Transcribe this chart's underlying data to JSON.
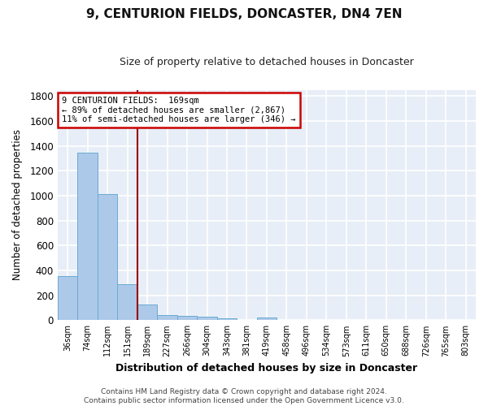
{
  "title": "9, CENTURION FIELDS, DONCASTER, DN4 7EN",
  "subtitle": "Size of property relative to detached houses in Doncaster",
  "xlabel": "Distribution of detached houses by size in Doncaster",
  "ylabel": "Number of detached properties",
  "footer_line1": "Contains HM Land Registry data © Crown copyright and database right 2024.",
  "footer_line2": "Contains public sector information licensed under the Open Government Licence v3.0.",
  "bin_labels": [
    "36sqm",
    "74sqm",
    "112sqm",
    "151sqm",
    "189sqm",
    "227sqm",
    "266sqm",
    "304sqm",
    "343sqm",
    "381sqm",
    "419sqm",
    "458sqm",
    "496sqm",
    "534sqm",
    "573sqm",
    "611sqm",
    "650sqm",
    "688sqm",
    "726sqm",
    "765sqm",
    "803sqm"
  ],
  "bar_values": [
    355,
    1345,
    1010,
    290,
    125,
    42,
    35,
    25,
    18,
    0,
    20,
    0,
    0,
    0,
    0,
    0,
    0,
    0,
    0,
    0,
    0
  ],
  "bar_color": "#adc9e9",
  "bar_edge_color": "#6aaad4",
  "vline_color": "#990000",
  "annotation_text_line1": "9 CENTURION FIELDS:  169sqm",
  "annotation_text_line2": "← 89% of detached houses are smaller (2,867)",
  "annotation_text_line3": "11% of semi-detached houses are larger (346) →",
  "annotation_box_color": "#ffffff",
  "annotation_box_edge": "#cc0000",
  "ylim": [
    0,
    1850
  ],
  "yticks": [
    0,
    200,
    400,
    600,
    800,
    1000,
    1200,
    1400,
    1600,
    1800
  ],
  "figure_bg": "#ffffff",
  "axes_bg": "#e8eef7",
  "grid_color": "#ffffff",
  "vline_position": 3.5
}
